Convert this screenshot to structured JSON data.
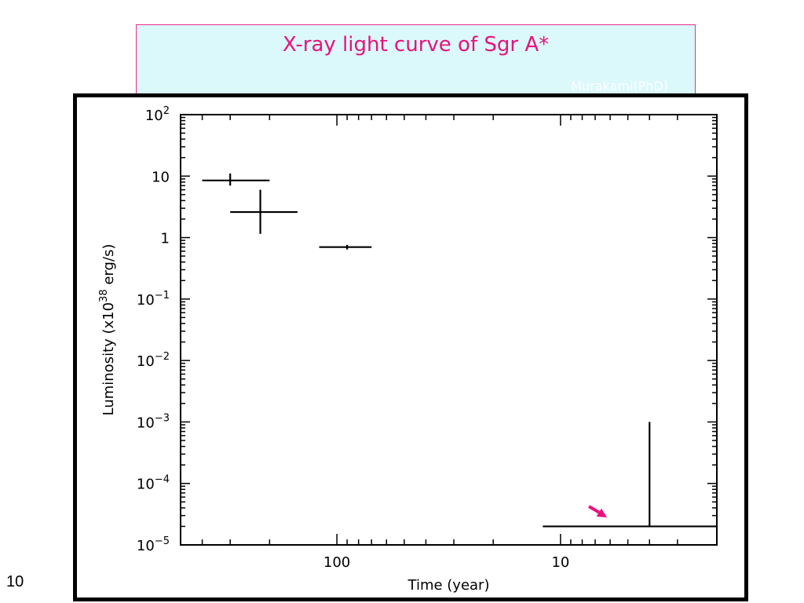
{
  "banner": {
    "title": "X-ray light curve of Sgr A*",
    "credit": "Murakami(PhD)"
  },
  "slide_number": "10",
  "colors": {
    "accent": "#e8127d",
    "banner_bg": "#dbf8fb",
    "ink": "#000000"
  },
  "chart_data": {
    "type": "scatter",
    "title": "",
    "xlabel": "Time (year)",
    "ylabel": "Luminosity (x10^38 erg/s)",
    "x_scale": "log",
    "x_reversed": true,
    "y_scale": "log",
    "xlim": [
      500,
      2
    ],
    "ylim": [
      1e-05,
      100
    ],
    "x_ticks": [
      {
        "value": 100,
        "label": "100"
      },
      {
        "value": 10,
        "label": "10"
      }
    ],
    "y_ticks": [
      {
        "value": 100,
        "base": "10",
        "exp": "2"
      },
      {
        "value": 10,
        "base": "10",
        "exp": ""
      },
      {
        "value": 1,
        "base": "1",
        "exp": ""
      },
      {
        "value": 0.1,
        "base": "10",
        "exp": "−1"
      },
      {
        "value": 0.01,
        "base": "10",
        "exp": "−2"
      },
      {
        "value": 0.001,
        "base": "10",
        "exp": "−3"
      },
      {
        "value": 0.0001,
        "base": "10",
        "exp": "−4"
      },
      {
        "value": 1e-05,
        "base": "10",
        "exp": "−5"
      }
    ],
    "points": [
      {
        "x": 300,
        "y": 8.5,
        "x_low": 200,
        "x_high": 400,
        "y_low": 7,
        "y_high": 11
      },
      {
        "x": 220,
        "y": 2.6,
        "x_low": 150,
        "x_high": 300,
        "y_low": 1.15,
        "y_high": 6
      },
      {
        "x": 90,
        "y": 0.7,
        "x_low": 70,
        "x_high": 120,
        "y_low": 0.64,
        "y_high": 0.76
      },
      {
        "x": 4,
        "y": 2e-05,
        "x_low": 2,
        "x_high": 12,
        "y_low": 2e-05,
        "y_high": 0.001
      }
    ],
    "annotation": {
      "type": "arrow",
      "color": "#e8127d",
      "target_x": 6.2,
      "target_y": 2.8e-05
    }
  }
}
